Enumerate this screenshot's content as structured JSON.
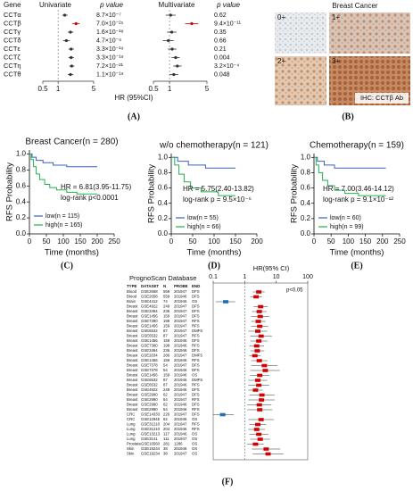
{
  "chart_data": [
    {
      "type": "forest",
      "panel": "(A)",
      "title": "Univariate",
      "p_header": "p value",
      "category_header": "Gene",
      "x_label": "HR (95%CI)",
      "categories": [
        "CCTα",
        "CCTβ",
        "CCTγ",
        "CCTδ",
        "CCTε",
        "CCTζ",
        "CCTη",
        "CCTθ"
      ],
      "p_values": [
        "8.7×10⁻⁷",
        "7.0×10⁻²⁵",
        "1.6×10⁻¹⁸",
        "4.7×10⁻⁶",
        "3.3×10⁻¹⁹",
        "3.3×10⁻¹⁹",
        "7.2×10⁻²¹",
        "1.1×10⁻¹⁹"
      ],
      "values": [
        1.35,
        2.25,
        1.75,
        1.45,
        1.8,
        1.8,
        1.85,
        1.75
      ],
      "lower": [
        1.2,
        1.9,
        1.55,
        1.25,
        1.6,
        1.6,
        1.65,
        1.55
      ],
      "upper": [
        1.55,
        2.65,
        2.0,
        1.7,
        2.05,
        2.05,
        2.1,
        2.0
      ],
      "point_colors": [
        "#333333",
        "#d40000",
        "#333333",
        "#333333",
        "#333333",
        "#333333",
        "#333333",
        "#333333"
      ],
      "log_x": true,
      "xlim": [
        0.5,
        5
      ],
      "xticks": [
        0.5,
        1,
        5
      ],
      "ref_line": 1
    },
    {
      "type": "forest",
      "title": "Multivariate",
      "p_header": "p value",
      "p_values": [
        "0.62",
        "9.4×10⁻¹¹",
        "0.35",
        "0.66",
        "0.21",
        "0.004",
        "3.2×10⁻⁴",
        "0.048"
      ],
      "values": [
        1.05,
        2.6,
        1.1,
        0.95,
        1.12,
        1.3,
        1.4,
        1.2
      ],
      "lower": [
        0.85,
        1.95,
        0.9,
        0.75,
        0.93,
        1.09,
        1.17,
        1.0
      ],
      "upper": [
        1.3,
        3.45,
        1.35,
        1.2,
        1.35,
        1.55,
        1.68,
        1.45
      ],
      "point_colors": [
        "#333333",
        "#d40000",
        "#333333",
        "#333333",
        "#333333",
        "#333333",
        "#333333",
        "#333333"
      ],
      "log_x": true,
      "xlim": [
        0.5,
        5
      ],
      "xticks": [
        0.5,
        1,
        5
      ],
      "ref_line": 1
    },
    {
      "type": "km",
      "panel": "(C)",
      "title": "Breast Cancer(n = 280)",
      "x_label": "Time (months)",
      "y_label": "RFS Probability",
      "annotations": [
        "HR = 6.81(3.95-11.75)",
        "log-rank p<0.0001"
      ],
      "xlim": [
        0,
        250
      ],
      "xticks": [
        0,
        50,
        100,
        150,
        200,
        250
      ],
      "ylim": [
        0,
        1.05
      ],
      "yticks": [
        {
          "value": 0,
          "label": "0.0"
        },
        0.2,
        0.4,
        0.6,
        0.8,
        {
          "value": 1,
          "label": "1.0"
        }
      ],
      "series": [
        {
          "name": "low(n = 115)",
          "color": "#3b5fc0",
          "x": [
            0,
            8,
            8,
            20,
            20,
            40,
            40,
            70,
            70,
            110,
            110,
            200
          ],
          "values": [
            1,
            1,
            0.96,
            0.96,
            0.92,
            0.92,
            0.89,
            0.89,
            0.86,
            0.86,
            0.84,
            0.84
          ]
        },
        {
          "name": "high(n = 165)",
          "color": "#22b14c",
          "x": [
            0,
            5,
            5,
            12,
            12,
            20,
            20,
            30,
            30,
            45,
            45,
            60,
            60,
            80,
            80,
            110,
            110,
            140,
            140,
            200
          ],
          "values": [
            1,
            1,
            0.93,
            0.93,
            0.84,
            0.84,
            0.75,
            0.75,
            0.68,
            0.68,
            0.62,
            0.62,
            0.58,
            0.58,
            0.55,
            0.55,
            0.52,
            0.52,
            0.5,
            0.5
          ]
        }
      ]
    },
    {
      "type": "km",
      "panel": "(D)",
      "title": "w/o chemotherapy(n = 121)",
      "x_label": "Time (months)",
      "y_label": "RFS Probability",
      "annotations": [
        "HR = 5.75(2.40-13.82)",
        "log-rank p = 9.5×10⁻⁶"
      ],
      "xlim": [
        0,
        200
      ],
      "xticks": [
        0,
        50,
        100,
        150,
        200
      ],
      "ylim": [
        0,
        1.05
      ],
      "yticks": [
        {
          "value": 0,
          "label": "0.0"
        },
        0.2,
        0.4,
        0.6,
        0.8,
        {
          "value": 1,
          "label": "1.0"
        }
      ],
      "series": [
        {
          "name": "low(n = 55)",
          "color": "#3b5fc0",
          "x": [
            0,
            15,
            15,
            40,
            40,
            80,
            80,
            150
          ],
          "values": [
            1,
            1,
            0.95,
            0.95,
            0.9,
            0.9,
            0.86,
            0.86
          ]
        },
        {
          "name": "high(n = 66)",
          "color": "#22b14c",
          "x": [
            0,
            8,
            8,
            18,
            18,
            30,
            30,
            45,
            45,
            70,
            70,
            110,
            110,
            150
          ],
          "values": [
            1,
            1,
            0.9,
            0.9,
            0.78,
            0.78,
            0.68,
            0.68,
            0.6,
            0.6,
            0.55,
            0.55,
            0.5,
            0.5
          ]
        }
      ]
    },
    {
      "type": "km",
      "panel": "(E)",
      "title": "Chemotherapy(n = 159)",
      "x_label": "Time (months)",
      "y_label": "RFS Probability",
      "annotations": [
        "HR = 7.00(3.46-14.12)",
        "log-rank p = 9.1×10⁻¹²"
      ],
      "xlim": [
        0,
        250
      ],
      "xticks": [
        0,
        50,
        100,
        150,
        200,
        250
      ],
      "ylim": [
        0,
        1.05
      ],
      "yticks": [
        {
          "value": 0,
          "label": "0.0"
        },
        0.2,
        0.4,
        0.6,
        0.8,
        {
          "value": 1,
          "label": "1.0"
        }
      ],
      "series": [
        {
          "name": "low(n = 60)",
          "color": "#3b5fc0",
          "x": [
            0,
            10,
            10,
            30,
            30,
            60,
            60,
            210
          ],
          "values": [
            1,
            1,
            0.95,
            0.95,
            0.9,
            0.9,
            0.86,
            0.86
          ]
        },
        {
          "name": "high(n = 99)",
          "color": "#22b14c",
          "x": [
            0,
            6,
            6,
            14,
            14,
            25,
            25,
            40,
            40,
            60,
            60,
            90,
            90,
            130,
            130,
            210
          ],
          "values": [
            1,
            1,
            0.9,
            0.9,
            0.8,
            0.8,
            0.7,
            0.7,
            0.63,
            0.63,
            0.57,
            0.57,
            0.53,
            0.53,
            0.5,
            0.5
          ]
        }
      ]
    },
    {
      "type": "forest-table",
      "panel": "(F)",
      "title": "PrognoScan Database",
      "x_label": "HR(95% CI)",
      "annotation": "p<0.05",
      "columns": [
        "TYPE",
        "DATASET",
        "N",
        "PROBE",
        "END"
      ],
      "rows": [
        [
          "Blood",
          "GSE2658",
          559,
          "201947",
          "DFS"
        ],
        [
          "Blood",
          "GSE2658",
          559,
          "201946",
          "DFS"
        ],
        [
          "Brain",
          "GSE4412",
          74,
          "201946",
          "OS"
        ],
        [
          "Breast",
          "GSE4922",
          249,
          "201947",
          "DFS"
        ],
        [
          "Breast",
          "GSE3494",
          236,
          "201947",
          "DFS"
        ],
        [
          "Breast",
          "GSE1456",
          159,
          "201947",
          "DFS"
        ],
        [
          "Breast",
          "GSE7390",
          198,
          "201947",
          "RFS"
        ],
        [
          "Breast",
          "GSE1456",
          159,
          "201947",
          "RFS"
        ],
        [
          "Breast",
          "GSE6532",
          87,
          "201947",
          "DMFS"
        ],
        [
          "Breast",
          "GSE6532",
          87,
          "201947",
          "RFS"
        ],
        [
          "Breast",
          "GSE1456",
          159,
          "201946",
          "DFS"
        ],
        [
          "Breast",
          "GSE7390",
          198,
          "201946",
          "RFS"
        ],
        [
          "Breast",
          "GSE3494",
          236,
          "201946",
          "DFS"
        ],
        [
          "Breast",
          "GSE2034",
          286,
          "201947",
          "DMFS"
        ],
        [
          "Breast",
          "GSE1456",
          159,
          "201946",
          "RFS"
        ],
        [
          "Breast",
          "GSE7378",
          54,
          "201947",
          "DFS"
        ],
        [
          "Breast",
          "GSE7378",
          54,
          "201946",
          "DFS"
        ],
        [
          "Breast",
          "GSE1456",
          159,
          "201946",
          "OS"
        ],
        [
          "Breast",
          "GSE6532",
          87,
          "201946",
          "DMFS"
        ],
        [
          "Breast",
          "GSE6532",
          87,
          "201946",
          "RFS"
        ],
        [
          "Breast",
          "GSE4922",
          249,
          "201946",
          "DFS"
        ],
        [
          "Breast",
          "GSE2990",
          62,
          "201947",
          "DFS"
        ],
        [
          "Breast",
          "GSE2990",
          54,
          "201947",
          "RFS"
        ],
        [
          "Breast",
          "GSE2990",
          62,
          "201946",
          "DFS"
        ],
        [
          "Breast",
          "GSE2990",
          54,
          "201946",
          "RFS"
        ],
        [
          "CRC",
          "GSE14333",
          226,
          "201947",
          "DFS"
        ],
        [
          "CRC",
          "GSE12945",
          62,
          "201946",
          "OS"
        ],
        [
          "Lung",
          "GSE31210",
          204,
          "201947",
          "RFS"
        ],
        [
          "Lung",
          "GSE31210",
          204,
          "201946",
          "RFS"
        ],
        [
          "Lung",
          "GSE13213",
          117,
          "201946",
          "OS"
        ],
        [
          "Lung",
          "GSE3141",
          111,
          "201947",
          "OS"
        ],
        [
          "Prostate",
          "GSE16560",
          281,
          "1286",
          "OS"
        ],
        [
          "Skin",
          "GSE19234",
          38,
          "201946",
          "OS"
        ],
        [
          "Skin",
          "GSE19234",
          38,
          "201947",
          "OS"
        ]
      ],
      "values": [
        2.8,
        2.3,
        0.25,
        3.2,
        2.9,
        3.1,
        2.7,
        3.0,
        2.6,
        3.3,
        2.8,
        2.4,
        2.5,
        2.1,
        2.9,
        4.2,
        4.5,
        3.0,
        2.6,
        2.8,
        2.2,
        3.5,
        3.4,
        2.9,
        3.0,
        0.2,
        3.3,
        2.6,
        2.4,
        2.8,
        3.1,
        2.2,
        4.8,
        5.5
      ],
      "lower": [
        1.8,
        1.5,
        0.12,
        1.9,
        1.7,
        1.6,
        1.6,
        1.6,
        1.3,
        1.5,
        1.5,
        1.4,
        1.5,
        1.4,
        1.6,
        1.6,
        1.5,
        1.5,
        1.3,
        1.3,
        1.3,
        1.4,
        1.3,
        1.2,
        1.2,
        0.1,
        1.3,
        1.4,
        1.3,
        1.4,
        1.5,
        1.2,
        1.7,
        1.8
      ],
      "upper": [
        4.3,
        3.5,
        0.5,
        5.4,
        5.0,
        6.0,
        4.6,
        5.6,
        5.2,
        7.3,
        5.2,
        4.1,
        4.2,
        3.2,
        5.3,
        11,
        13,
        6.0,
        5.2,
        6.0,
        3.7,
        8.8,
        8.9,
        7.0,
        7.5,
        0.45,
        8.4,
        4.8,
        4.4,
        5.6,
        6.4,
        4.0,
        13.5,
        17
      ],
      "point_colors": [
        "#d40000",
        "#d40000",
        "#1a6fb5",
        "#d40000",
        "#d40000",
        "#d40000",
        "#d40000",
        "#d40000",
        "#d40000",
        "#d40000",
        "#d40000",
        "#d40000",
        "#d40000",
        "#d40000",
        "#d40000",
        "#d40000",
        "#d40000",
        "#d40000",
        "#d40000",
        "#d40000",
        "#d40000",
        "#d40000",
        "#d40000",
        "#d40000",
        "#d40000",
        "#1a6fb5",
        "#d40000",
        "#d40000",
        "#d40000",
        "#d40000",
        "#d40000",
        "#d40000",
        "#d40000",
        "#d40000"
      ],
      "log_x": true,
      "xlim": [
        0.1,
        100
      ],
      "xticks": [
        0.1,
        1,
        10,
        100
      ],
      "ref_line": 1
    }
  ],
  "image_panel": {
    "panel": "(B)",
    "title": "Breast Cancer",
    "scores": [
      "0+",
      "1+",
      "2+",
      "3+"
    ],
    "caption": "IHC: CCTβ Ab"
  }
}
